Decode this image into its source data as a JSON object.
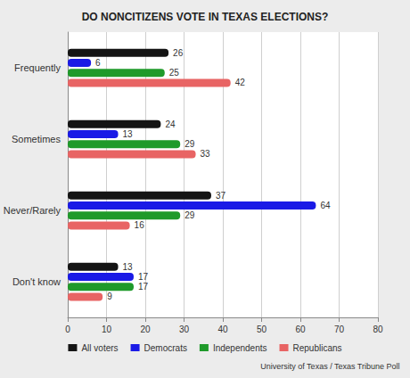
{
  "chart_data": {
    "type": "bar",
    "orientation": "horizontal",
    "title": "DO NONCITIZENS VOTE IN TEXAS ELECTIONS?",
    "annotations": [
      "University of Texas / Texas Tribune Poll"
    ],
    "categories": [
      "Frequently",
      "Sometimes",
      "Never/Rarely",
      "Don't know"
    ],
    "series": [
      {
        "name": "All voters",
        "color": "#141414",
        "values": [
          26,
          24,
          37,
          13
        ]
      },
      {
        "name": "Democrats",
        "color": "#1a1ae6",
        "values": [
          6,
          13,
          64,
          17
        ]
      },
      {
        "name": "Independents",
        "color": "#1f9a2a",
        "values": [
          25,
          29,
          29,
          17
        ]
      },
      {
        "name": "Republicans",
        "color": "#e86464",
        "values": [
          42,
          33,
          16,
          9
        ]
      }
    ],
    "xlim": [
      0,
      80
    ],
    "xticks": [
      0,
      10,
      20,
      30,
      40,
      50,
      60,
      70,
      80
    ],
    "grid": true,
    "legend": "bottom",
    "data_labels": true
  }
}
